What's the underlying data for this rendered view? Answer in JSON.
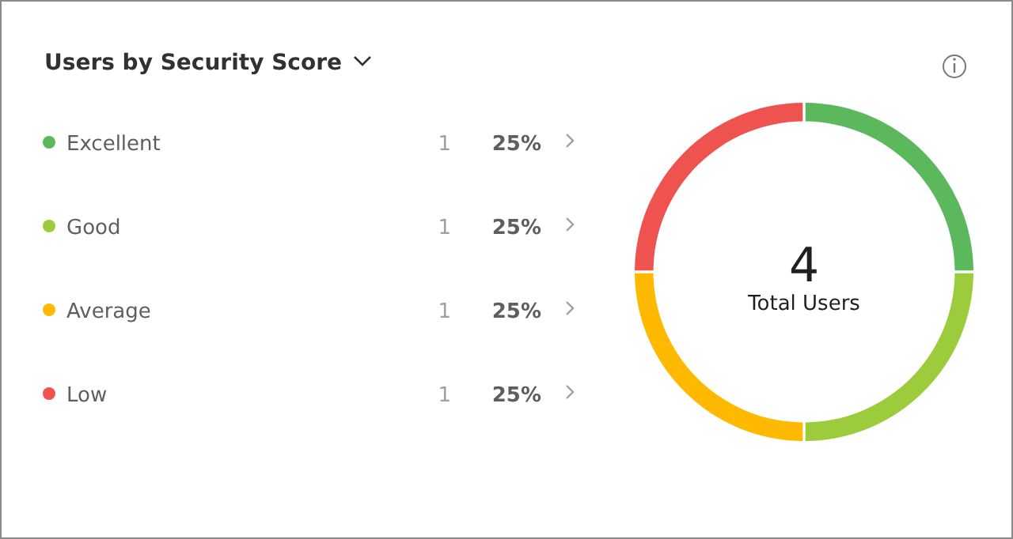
{
  "chart_data": {
    "type": "donut",
    "title": "Users by Security Score",
    "categories": [
      "Excellent",
      "Good",
      "Average",
      "Low"
    ],
    "values": [
      25,
      25,
      25,
      25
    ],
    "value_labels": [
      "25%",
      "25%",
      "25%",
      "25%"
    ],
    "colors": [
      "#5cb85c",
      "#9ccb3b",
      "#ffb900",
      "#ef5350"
    ],
    "legend": "left",
    "annotations": [
      "4",
      "Total Users",
      "1",
      "1",
      "1",
      "1"
    ]
  }
}
